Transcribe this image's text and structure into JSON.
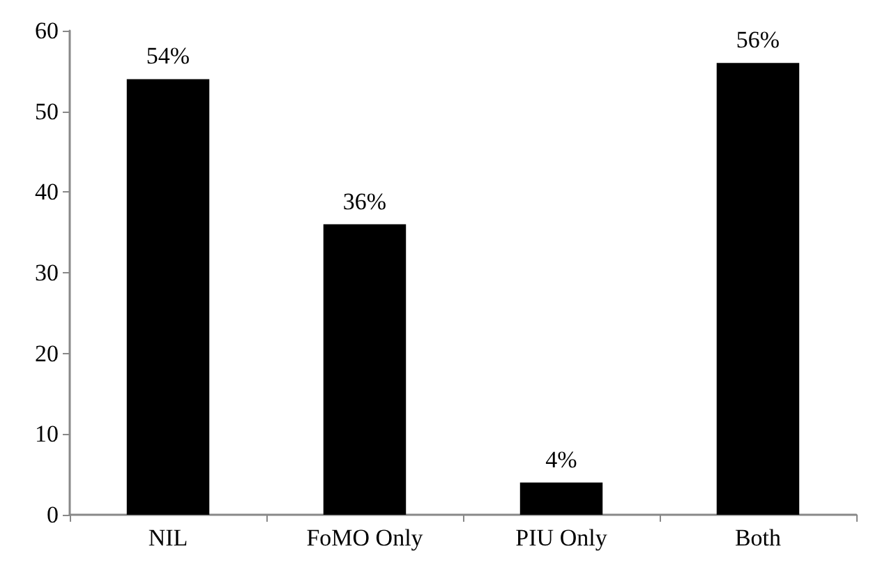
{
  "chart_data": {
    "type": "bar",
    "categories": [
      "NIL",
      "FoMO Only",
      "PIU Only",
      "Both"
    ],
    "values": [
      54,
      36,
      4,
      56
    ],
    "value_labels": [
      "54%",
      "36%",
      "4%",
      "56%"
    ],
    "color": "#000000",
    "ylim": [
      0,
      60
    ],
    "yticks": [
      0,
      10,
      20,
      30,
      40,
      50,
      60
    ],
    "grid": false
  }
}
